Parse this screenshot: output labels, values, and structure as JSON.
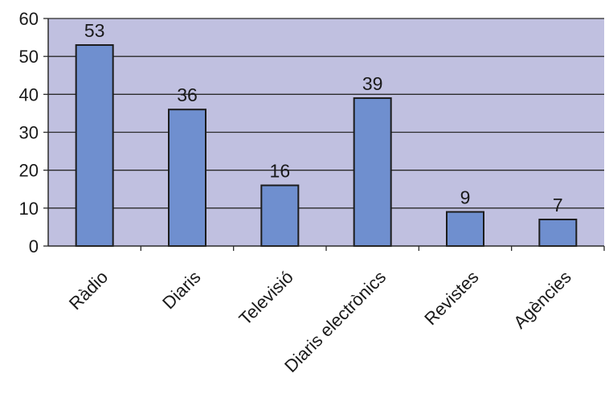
{
  "chart_data": {
    "type": "bar",
    "categories": [
      "Ràdio",
      "Diaris",
      "Televisió",
      "Diaris electrònics",
      "Revistes",
      "Agències"
    ],
    "values": [
      53,
      36,
      16,
      39,
      9,
      7
    ],
    "data_labels": [
      "53",
      "36",
      "16",
      "39",
      "9",
      "7"
    ],
    "y_ticks": [
      "0",
      "10",
      "20",
      "30",
      "40",
      "50",
      "60"
    ],
    "ylim": [
      0,
      60
    ],
    "grid": true,
    "legend": "none",
    "colors": {
      "plot_area": "#c0c0e0",
      "bar_fill": "#6f8fcf",
      "bar_stroke": "#1c1c1c",
      "grid_line": "#2a2a2a",
      "axis_line": "#2a2a2a"
    }
  }
}
